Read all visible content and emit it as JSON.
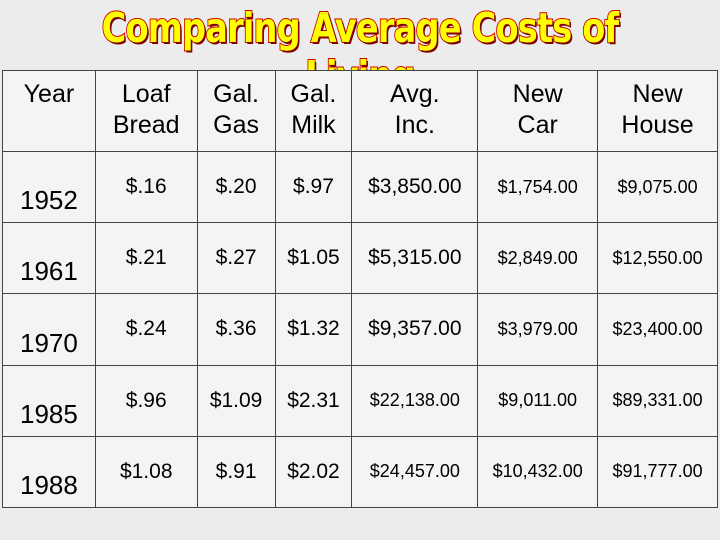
{
  "header": {
    "title": "Comparing Average Costs of Living"
  },
  "table": {
    "columns": [
      "Year",
      "Loaf\nBread",
      "Gal.\nGas",
      "Gal.\nMilk",
      "Avg.\nInc.",
      "New\nCar",
      "New\nHouse"
    ],
    "rows": [
      [
        "1952",
        "$.16",
        "$.20",
        "$.97",
        "$3,850.00",
        "$1,754.00",
        "$9,075.00"
      ],
      [
        "1961",
        "$.21",
        "$.27",
        "$1.05",
        "$5,315.00",
        "$2,849.00",
        "$12,550.00"
      ],
      [
        "1970",
        "$.24",
        "$.36",
        "$1.32",
        "$9,357.00",
        "$3,979.00",
        "$23,400.00"
      ],
      [
        "1985",
        "$.96",
        "$1.09",
        "$2.31",
        "$22,138.00",
        "$9,011.00",
        "$89,331.00"
      ],
      [
        "1988",
        "$1.08",
        "$.91",
        "$2.02",
        "$24,457.00",
        "$10,432.00",
        "$91,777.00"
      ]
    ]
  }
}
